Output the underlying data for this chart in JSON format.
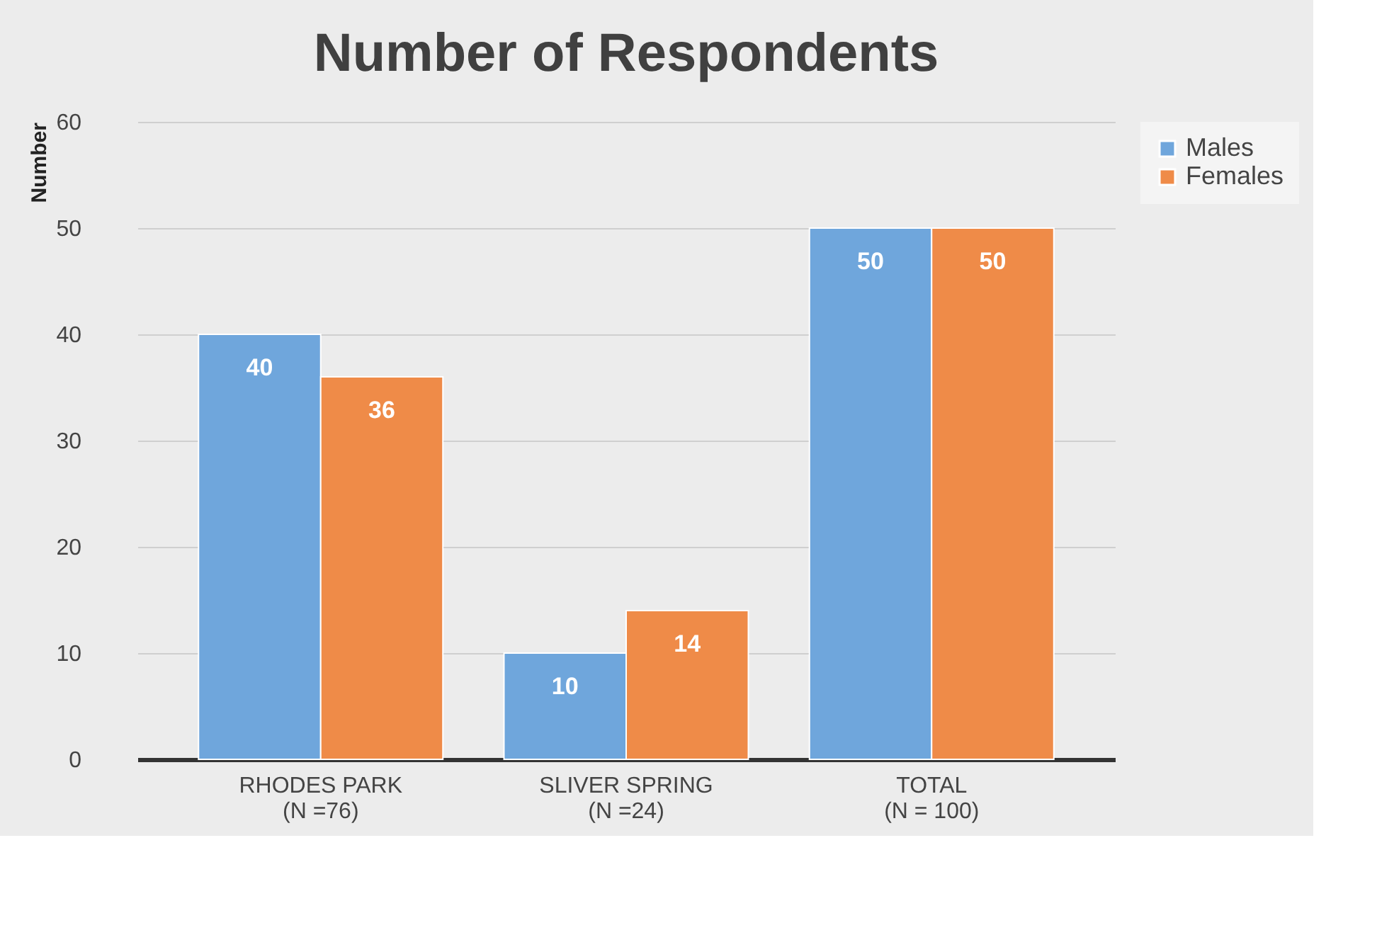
{
  "chart_data": {
    "type": "bar",
    "title": "Number of Respondents",
    "ylabel": "Number",
    "categories": [
      "RHODES PARK\n(N =76)",
      "SLIVER SPRING\n(N =24)",
      "TOTAL\n(N = 100)"
    ],
    "series": [
      {
        "name": "Males",
        "color": "#6fa6dc",
        "values": [
          40,
          10,
          50
        ]
      },
      {
        "name": "Females",
        "color": "#ef8b48",
        "values": [
          36,
          14,
          50
        ]
      }
    ],
    "ylim": [
      0,
      60
    ],
    "yticks": [
      0,
      10,
      20,
      30,
      40,
      50,
      60
    ],
    "grid": "y",
    "legend": "right",
    "data_labels": true
  }
}
